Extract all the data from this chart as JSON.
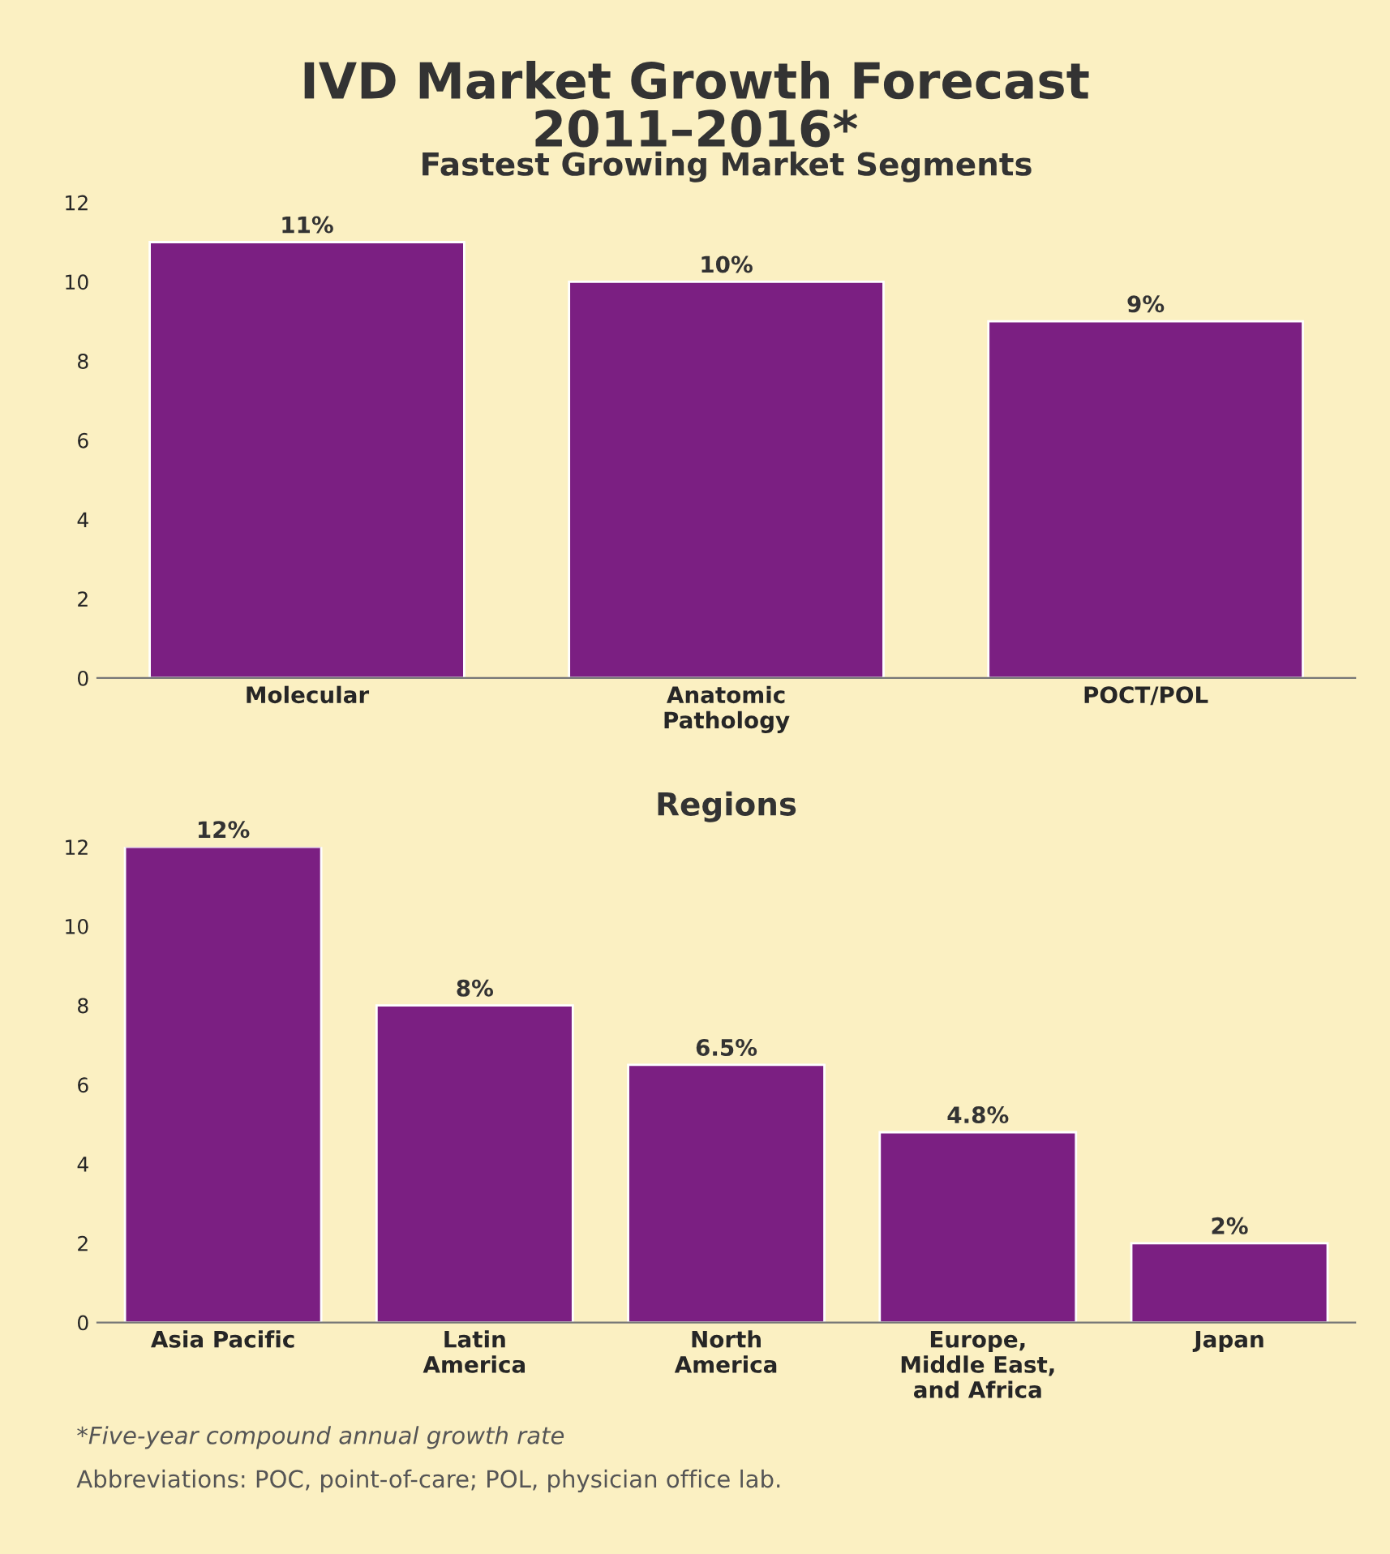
{
  "chart_data": [
    {
      "type": "bar",
      "title": "IVD Market Growth Forecast\n2011–2016*",
      "subtitle": "Fastest Growing Market Segments",
      "categories": [
        "Molecular",
        "Anatomic\nPathology",
        "POCT/POL"
      ],
      "values": [
        11,
        10,
        9
      ],
      "value_labels": [
        "11%",
        "10%",
        "9%"
      ],
      "color": "#7b1f82",
      "ylim": [
        0,
        12
      ],
      "yticks": [
        0,
        2,
        4,
        6,
        8,
        10,
        12
      ],
      "grid": false,
      "legend": false
    },
    {
      "type": "bar",
      "title": "Regions",
      "categories": [
        "Asia Pacific",
        "Latin\nAmerica",
        "North\nAmerica",
        "Europe,\nMiddle East,\nand Africa",
        "Japan"
      ],
      "values": [
        12,
        8,
        6.5,
        4.8,
        2
      ],
      "value_labels": [
        "12%",
        "8%",
        "6.5%",
        "4.8%",
        "2%"
      ],
      "color": "#7b1f82",
      "ylim": [
        0,
        12
      ],
      "yticks": [
        0,
        2,
        4,
        6,
        8,
        10,
        12
      ],
      "grid": false,
      "legend": false,
      "annotations": [
        "*Five-year compound annual growth rate",
        "Abbreviations: POC, point-of-care; POL, physician office lab."
      ]
    }
  ]
}
